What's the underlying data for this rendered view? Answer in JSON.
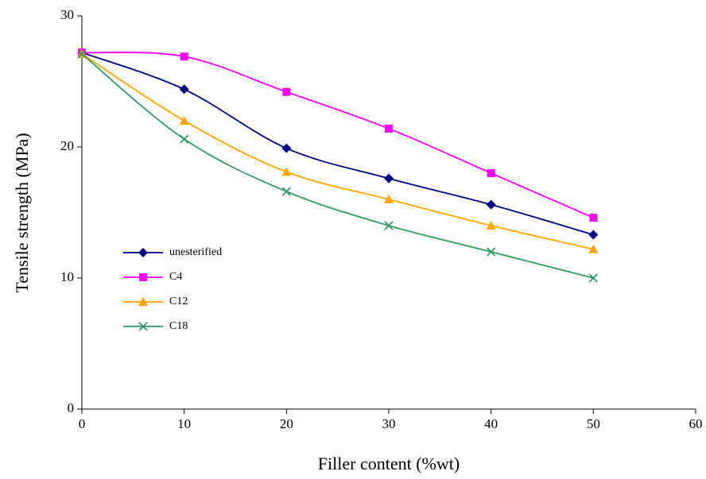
{
  "chart_data": {
    "type": "line",
    "x_label": "Filler content (%wt)",
    "y_label": "Tensile strength (MPa)",
    "x": [
      0,
      10,
      20,
      30,
      40,
      50
    ],
    "series": [
      {
        "name": "unesterified",
        "color": "#000080",
        "marker": "diamond",
        "values": [
          27.2,
          24.4,
          19.9,
          17.6,
          15.6,
          13.3
        ]
      },
      {
        "name": "C4",
        "color": "#ff00ff",
        "marker": "square",
        "values": [
          27.2,
          26.9,
          24.2,
          21.4,
          18.0,
          14.6
        ]
      },
      {
        "name": "C12",
        "color": "#ffa500",
        "marker": "triangle",
        "values": [
          27.1,
          22.0,
          18.1,
          16.0,
          14.0,
          12.2
        ]
      },
      {
        "name": "C18",
        "color": "#339966",
        "marker": "x",
        "values": [
          27.1,
          20.6,
          16.6,
          14.0,
          12.0,
          10.0
        ]
      }
    ],
    "xlim": [
      0,
      60
    ],
    "xticks": [
      0,
      10,
      20,
      30,
      40,
      50,
      60
    ],
    "ylim": [
      0,
      30
    ],
    "yticks": [
      0,
      10,
      20,
      30
    ],
    "grid": false,
    "legend": "left"
  }
}
